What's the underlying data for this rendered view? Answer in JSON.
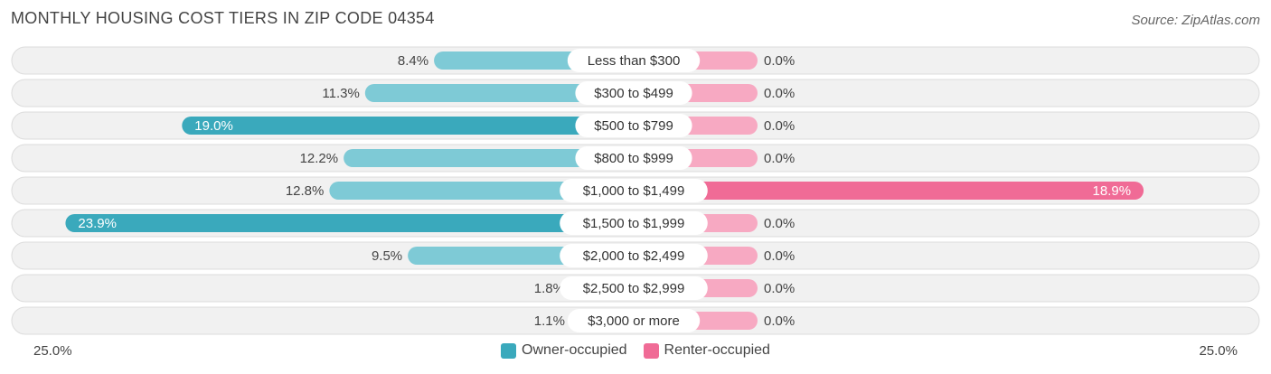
{
  "title": "MONTHLY HOUSING COST TIERS IN ZIP CODE 04354",
  "source": "Source: ZipAtlas.com",
  "colors": {
    "owner_light": "#7ecad6",
    "owner_dark": "#3aa9bc",
    "renter_light": "#f7a9c2",
    "renter_dark": "#f06b96",
    "row_bg": "#f1f1f1",
    "row_border": "#dcdcdc"
  },
  "axis": {
    "left_label": "25.0%",
    "right_label": "25.0%"
  },
  "chart_data": {
    "type": "bar",
    "orientation": "horizontal-diverging",
    "xlim": [
      -25,
      25
    ],
    "categories": [
      "Less than $300",
      "$300 to $499",
      "$500 to $799",
      "$800 to $999",
      "$1,000 to $1,499",
      "$1,500 to $1,999",
      "$2,000 to $2,499",
      "$2,500 to $2,999",
      "$3,000 or more"
    ],
    "series": [
      {
        "name": "Owner-occupied",
        "values": [
          8.4,
          11.3,
          19.0,
          12.2,
          12.8,
          23.9,
          9.5,
          1.8,
          1.1
        ],
        "labels": [
          "8.4%",
          "11.3%",
          "19.0%",
          "12.2%",
          "12.8%",
          "23.9%",
          "9.5%",
          "1.8%",
          "1.1%"
        ]
      },
      {
        "name": "Renter-occupied",
        "values": [
          0.0,
          0.0,
          0.0,
          0.0,
          18.9,
          0.0,
          0.0,
          0.0,
          0.0
        ],
        "labels": [
          "0.0%",
          "0.0%",
          "0.0%",
          "0.0%",
          "18.9%",
          "0.0%",
          "0.0%",
          "0.0%",
          "0.0%"
        ]
      }
    ],
    "legend": "bottom-center"
  }
}
